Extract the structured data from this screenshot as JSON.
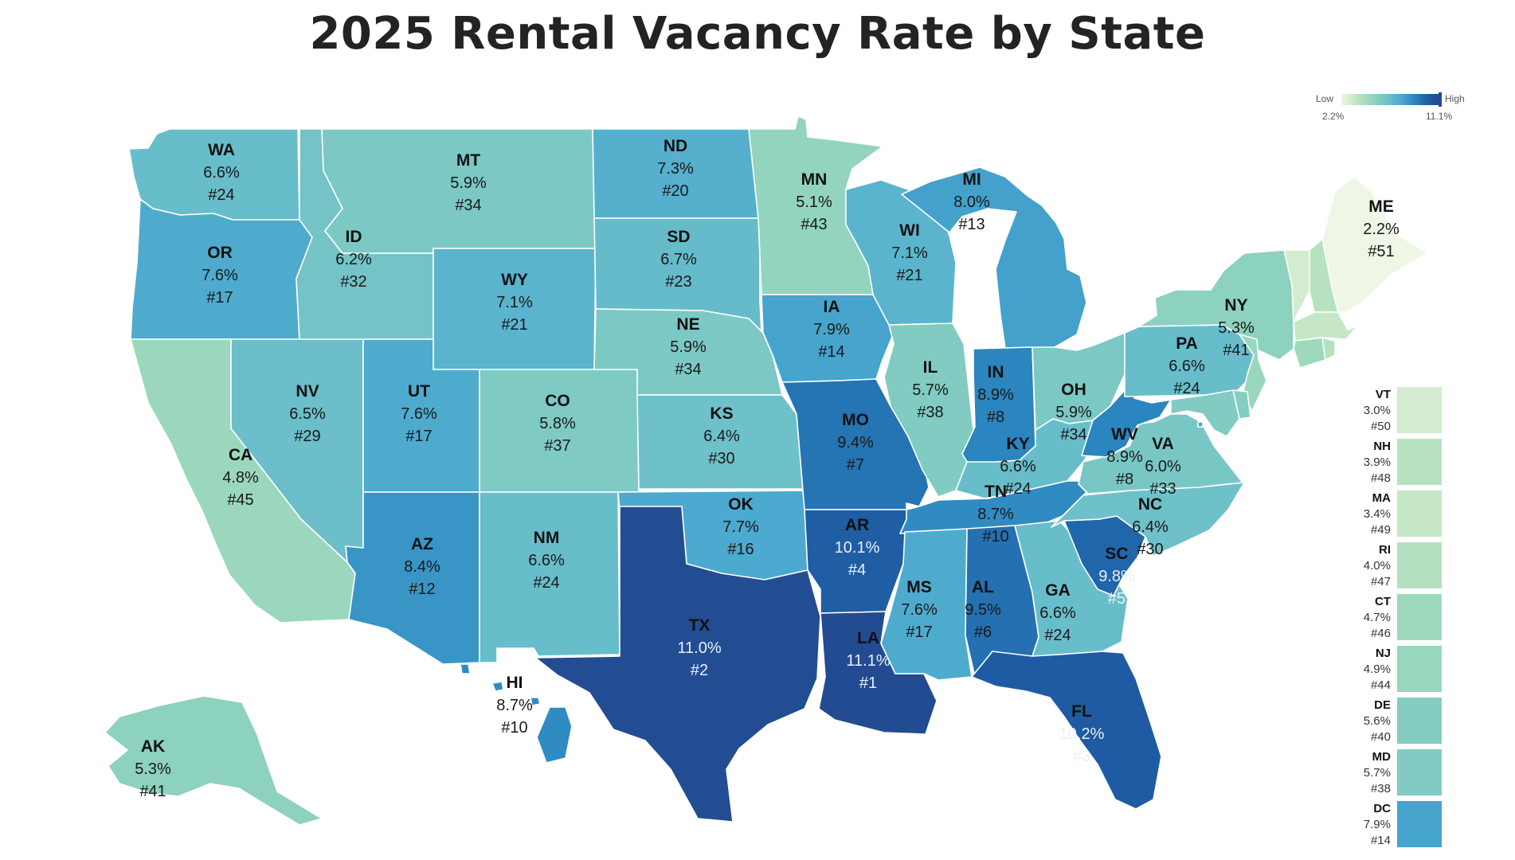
{
  "title": "2025 Rental Vacancy Rate by State",
  "legend": {
    "low_label": "Low",
    "high_label": "High",
    "min_label": "2.2%",
    "max_label": "11.1%",
    "min": 2.2,
    "max": 11.1,
    "colors": [
      "#eef7e6",
      "#c9e8c6",
      "#a6dcbb",
      "#86cec0",
      "#67bccb",
      "#4aa8cf",
      "#2b86bf",
      "#1e5fa6",
      "#234b91"
    ]
  },
  "states": {
    "WA": {
      "value": "6.6%",
      "rank": "#24",
      "v": 6.6
    },
    "OR": {
      "value": "7.6%",
      "rank": "#17",
      "v": 7.6
    },
    "CA": {
      "value": "4.8%",
      "rank": "#45",
      "v": 4.8
    },
    "NV": {
      "value": "6.5%",
      "rank": "#29",
      "v": 6.5
    },
    "ID": {
      "value": "6.2%",
      "rank": "#32",
      "v": 6.2
    },
    "MT": {
      "value": "5.9%",
      "rank": "#34",
      "v": 5.9
    },
    "WY": {
      "value": "7.1%",
      "rank": "#21",
      "v": 7.1
    },
    "UT": {
      "value": "7.6%",
      "rank": "#17",
      "v": 7.6
    },
    "AZ": {
      "value": "8.4%",
      "rank": "#12",
      "v": 8.4
    },
    "CO": {
      "value": "5.8%",
      "rank": "#37",
      "v": 5.8
    },
    "NM": {
      "value": "6.6%",
      "rank": "#24",
      "v": 6.6
    },
    "ND": {
      "value": "7.3%",
      "rank": "#20",
      "v": 7.3
    },
    "SD": {
      "value": "6.7%",
      "rank": "#23",
      "v": 6.7
    },
    "NE": {
      "value": "5.9%",
      "rank": "#34",
      "v": 5.9
    },
    "KS": {
      "value": "6.4%",
      "rank": "#30",
      "v": 6.4
    },
    "OK": {
      "value": "7.7%",
      "rank": "#16",
      "v": 7.7
    },
    "TX": {
      "value": "11.0%",
      "rank": "#2",
      "v": 11.0
    },
    "MN": {
      "value": "5.1%",
      "rank": "#43",
      "v": 5.1
    },
    "IA": {
      "value": "7.9%",
      "rank": "#14",
      "v": 7.9
    },
    "MO": {
      "value": "9.4%",
      "rank": "#7",
      "v": 9.4
    },
    "AR": {
      "value": "10.1%",
      "rank": "#4",
      "v": 10.1
    },
    "LA": {
      "value": "11.1%",
      "rank": "#1",
      "v": 11.1
    },
    "WI": {
      "value": "7.1%",
      "rank": "#21",
      "v": 7.1
    },
    "IL": {
      "value": "5.7%",
      "rank": "#38",
      "v": 5.7
    },
    "MI": {
      "value": "8.0%",
      "rank": "#13",
      "v": 8.0
    },
    "IN": {
      "value": "8.9%",
      "rank": "#8",
      "v": 8.9
    },
    "OH": {
      "value": "5.9%",
      "rank": "#34",
      "v": 5.9
    },
    "KY": {
      "value": "6.6%",
      "rank": "#24",
      "v": 6.6
    },
    "TN": {
      "value": "8.7%",
      "rank": "#10",
      "v": 8.7
    },
    "MS": {
      "value": "7.6%",
      "rank": "#17",
      "v": 7.6
    },
    "AL": {
      "value": "9.5%",
      "rank": "#6",
      "v": 9.5
    },
    "GA": {
      "value": "6.6%",
      "rank": "#24",
      "v": 6.6
    },
    "FL": {
      "value": "10.2%",
      "rank": "#3",
      "v": 10.2
    },
    "SC": {
      "value": "9.8%",
      "rank": "#5",
      "v": 9.8
    },
    "NC": {
      "value": "6.4%",
      "rank": "#30",
      "v": 6.4
    },
    "VA": {
      "value": "6.0%",
      "rank": "#33",
      "v": 6.0
    },
    "WV": {
      "value": "8.9%",
      "rank": "#8",
      "v": 8.9
    },
    "PA": {
      "value": "6.6%",
      "rank": "#24",
      "v": 6.6
    },
    "NY": {
      "value": "5.3%",
      "rank": "#41",
      "v": 5.3
    },
    "ME": {
      "value": "2.2%",
      "rank": "#51",
      "v": 2.2
    },
    "AK": {
      "value": "5.3%",
      "rank": "#41",
      "v": 5.3
    },
    "HI": {
      "value": "8.7%",
      "rank": "#10",
      "v": 8.7
    }
  },
  "small_states": [
    {
      "abbr": "VT",
      "value": "3.0%",
      "rank": "#50",
      "v": 3.0
    },
    {
      "abbr": "NH",
      "value": "3.9%",
      "rank": "#48",
      "v": 3.9
    },
    {
      "abbr": "MA",
      "value": "3.4%",
      "rank": "#49",
      "v": 3.4
    },
    {
      "abbr": "RI",
      "value": "4.0%",
      "rank": "#47",
      "v": 4.0
    },
    {
      "abbr": "CT",
      "value": "4.7%",
      "rank": "#46",
      "v": 4.7
    },
    {
      "abbr": "NJ",
      "value": "4.9%",
      "rank": "#44",
      "v": 4.9
    },
    {
      "abbr": "DE",
      "value": "5.6%",
      "rank": "#40",
      "v": 5.6
    },
    {
      "abbr": "MD",
      "value": "5.7%",
      "rank": "#38",
      "v": 5.7
    },
    {
      "abbr": "DC",
      "value": "7.9%",
      "rank": "#14",
      "v": 7.9
    }
  ]
}
